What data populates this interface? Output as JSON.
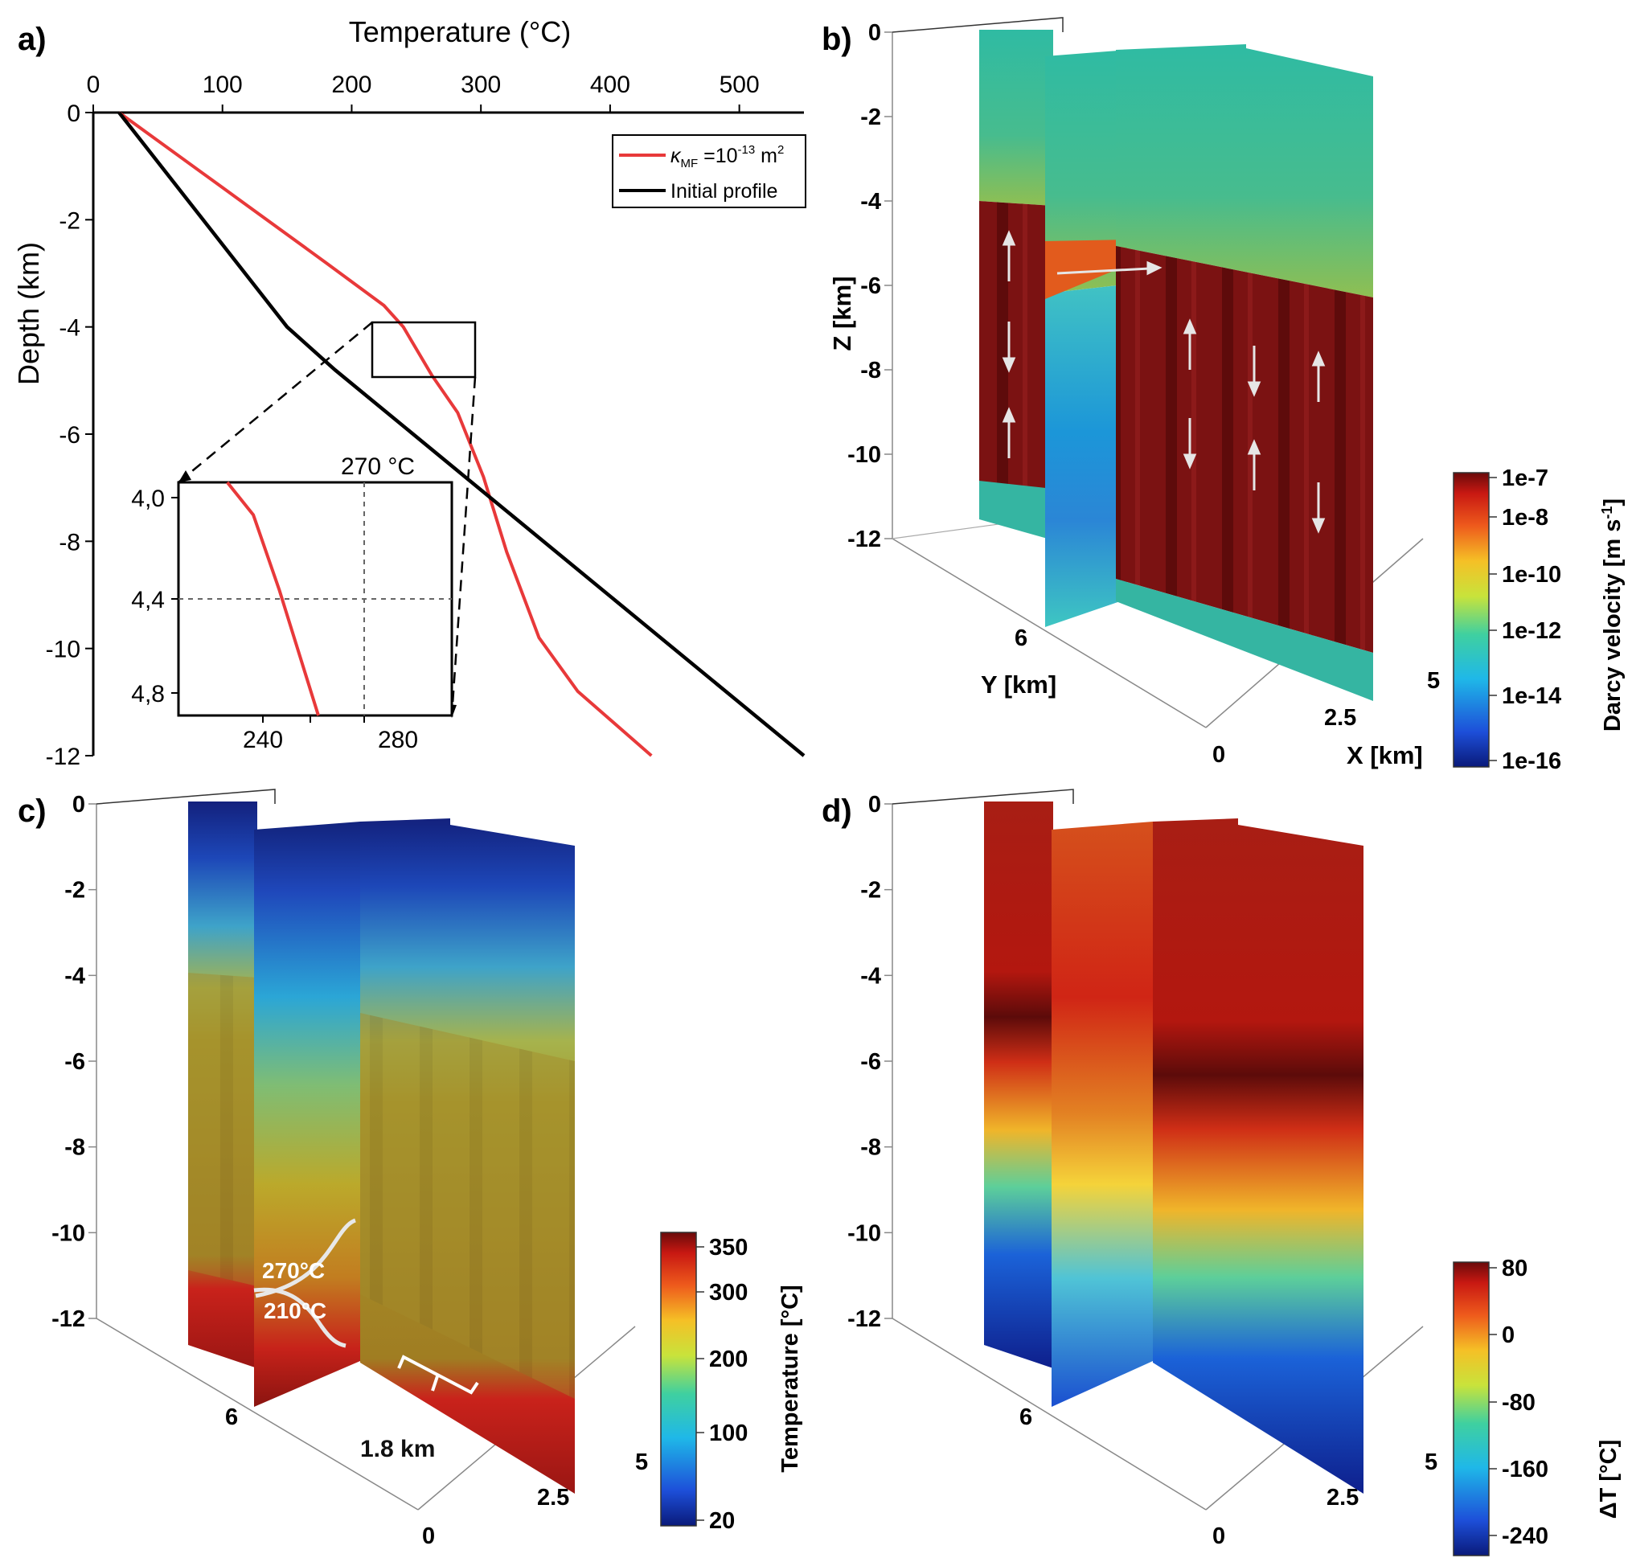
{
  "panels": {
    "a": {
      "label": "a)",
      "x_title": "Temperature (°C)",
      "y_title": "Depth (km)",
      "x_ticks": [
        "0",
        "100",
        "200",
        "300",
        "400",
        "500"
      ],
      "y_ticks": [
        "0",
        "-2",
        "-4",
        "-6",
        "-8",
        "-10",
        "-12"
      ],
      "legend": {
        "red_prefix": "κ",
        "red_sub": "MF",
        "red_mid": " =10",
        "red_sup": "-13",
        "red_unit": " m",
        "red_unit_sup": "2",
        "black": "Initial profile"
      },
      "inset": {
        "title": "270 °C",
        "y_ticks": [
          "4,0",
          "4,4",
          "4,8"
        ],
        "x_ticks": [
          "240",
          "280"
        ]
      }
    },
    "b": {
      "label": "b)",
      "z_title": "Z [km]",
      "y_title": "Y [km]",
      "x_title": "X [km]",
      "z_ticks": [
        "0",
        "-2",
        "-4",
        "-6",
        "-8",
        "-10",
        "-12"
      ],
      "y_ticks": [
        "6"
      ],
      "x_ticks": [
        "5",
        "2.5",
        "0"
      ],
      "colorbar": {
        "title": "Darcy velocity [m s",
        "title_sup": "-1",
        "title_end": "]",
        "ticks": [
          "1e-7",
          "1e-8",
          "1e-10",
          "1e-12",
          "1e-14",
          "1e-16"
        ]
      }
    },
    "c": {
      "label": "c)",
      "z_ticks": [
        "0",
        "-2",
        "-4",
        "-6",
        "-8",
        "-10",
        "-12"
      ],
      "y_ticks": [
        "6"
      ],
      "x_ticks": [
        "5",
        "2.5",
        "0"
      ],
      "annotations": [
        "210°C",
        "270°C",
        "1.8 km"
      ],
      "colorbar": {
        "title": "Temperature [°C]",
        "ticks": [
          "350",
          "300",
          "200",
          "100",
          "20"
        ]
      }
    },
    "d": {
      "label": "d)",
      "z_ticks": [
        "0",
        "-2",
        "-4",
        "-6",
        "-8",
        "-10",
        "-12"
      ],
      "y_ticks": [
        "6"
      ],
      "x_ticks": [
        "5",
        "2.5",
        "0"
      ],
      "colorbar": {
        "title": "ΔT [°C]",
        "ticks": [
          "80",
          "0",
          "-80",
          "-160",
          "-240"
        ]
      }
    }
  },
  "chart_data": [
    {
      "type": "line",
      "panel": "a",
      "title": "",
      "xlabel": "Temperature (°C)",
      "ylabel": "Depth (km)",
      "xlim": [
        0,
        550
      ],
      "ylim": [
        -12,
        0
      ],
      "series": [
        {
          "name": "κMF =10-13 m2",
          "color": "#e8393a",
          "x": [
            20,
            100,
            180,
            225,
            240,
            262,
            282,
            302,
            320,
            345,
            375,
            432
          ],
          "y": [
            0,
            -1.4,
            -2.8,
            -3.6,
            -4.0,
            -4.9,
            -5.6,
            -6.8,
            -8.2,
            -9.8,
            -10.8,
            -12
          ]
        },
        {
          "name": "Initial profile",
          "color": "#000000",
          "x": [
            20,
            150,
            187,
            550
          ],
          "y": [
            0,
            -4.0,
            -4.8,
            -12
          ]
        }
      ],
      "inset": {
        "title": "270 °C",
        "xlim": [
          213,
          297
        ],
        "ylim": [
          -4.9,
          -3.97
        ],
        "reference_x": 270,
        "reference_y": -4.4,
        "series": [
          {
            "name": "κMF =10-13 m2",
            "color": "#e8393a",
            "x": [
              228,
              236,
              240,
              244,
              256
            ],
            "y": [
              -3.97,
              -4.1,
              -4.25,
              -4.4,
              -4.9
            ]
          }
        ]
      }
    }
  ]
}
